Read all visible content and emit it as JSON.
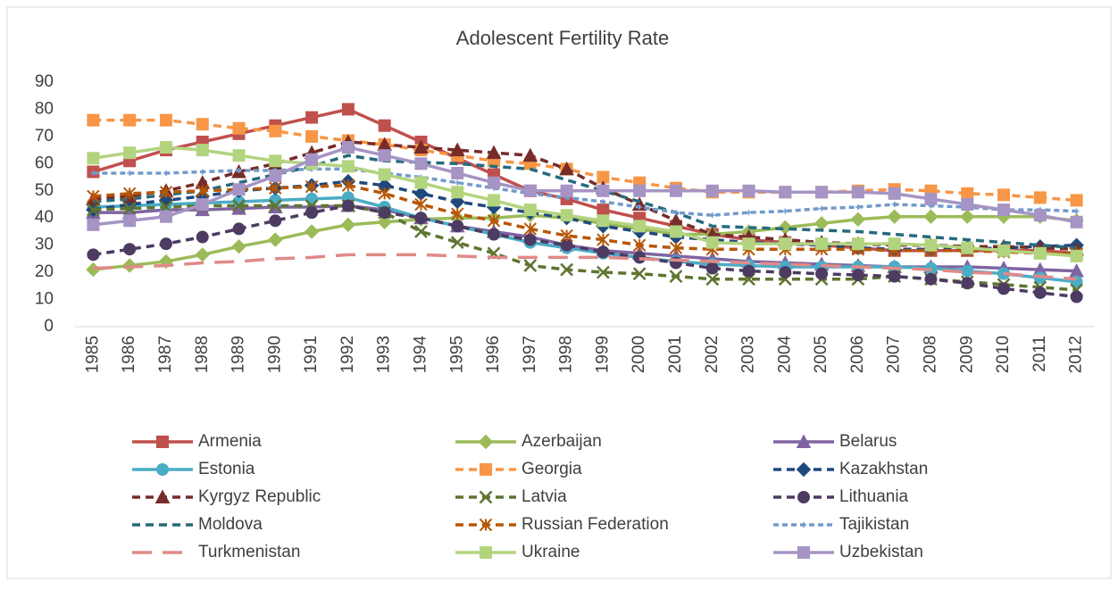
{
  "chart_data": {
    "type": "line",
    "title": "Adolescent Fertility Rate",
    "categories": [
      "1985",
      "1986",
      "1987",
      "1988",
      "1989",
      "1990",
      "1991",
      "1992",
      "1993",
      "1994",
      "1995",
      "1996",
      "1997",
      "1998",
      "1999",
      "2000",
      "2001",
      "2002",
      "2003",
      "2004",
      "2005",
      "2006",
      "2007",
      "2008",
      "2009",
      "2010",
      "2011",
      "2012"
    ],
    "ylim": [
      0,
      90
    ],
    "yticks": [
      0,
      10,
      20,
      30,
      40,
      50,
      60,
      70,
      80,
      90
    ],
    "grid": false,
    "legend": "bottom",
    "series": [
      {
        "name": "Armenia",
        "color": "#c0504d",
        "dash": "solid",
        "marker": "square",
        "values": [
          57,
          61,
          65,
          68,
          71,
          74,
          77,
          80,
          74,
          68,
          62,
          56,
          50,
          47,
          43,
          40,
          37,
          34,
          32,
          31,
          30,
          29,
          28,
          28,
          28,
          28,
          28,
          27
        ]
      },
      {
        "name": "Azerbaijan",
        "color": "#9bbb59",
        "dash": "solid",
        "marker": "diamond",
        "values": [
          21,
          22.5,
          24,
          26.5,
          29.5,
          32,
          35,
          37.5,
          38.5,
          39.5,
          40,
          40,
          41,
          40,
          38,
          36,
          34,
          34,
          35,
          36.5,
          38,
          39.5,
          40.5,
          40.5,
          40.5,
          40.5,
          40.5,
          39
        ]
      },
      {
        "name": "Belarus",
        "color": "#8064a2",
        "dash": "solid",
        "marker": "triangle",
        "values": [
          42,
          42,
          43,
          43,
          43.5,
          44,
          44,
          44.5,
          43,
          40,
          37,
          35,
          33,
          30,
          28,
          27,
          26,
          25,
          24,
          23.5,
          23,
          22.5,
          22,
          22,
          22,
          21.5,
          21,
          20.5
        ]
      },
      {
        "name": "Estonia",
        "color": "#4bacc6",
        "dash": "solid",
        "marker": "circle",
        "values": [
          44,
          44.5,
          45,
          45.5,
          46,
          46.5,
          47,
          47.5,
          44,
          40,
          37,
          34,
          31,
          29,
          27,
          25.5,
          24,
          23,
          22.5,
          22,
          22,
          22,
          22,
          21.5,
          20.5,
          19.5,
          18,
          16.5
        ]
      },
      {
        "name": "Georgia",
        "color": "#f79646",
        "dash": "dash",
        "marker": "square",
        "values": [
          76,
          76,
          76,
          74.5,
          73,
          72,
          70,
          68.5,
          67,
          65,
          63,
          61,
          60,
          58,
          55,
          53,
          51,
          49.5,
          49.5,
          49.5,
          49.5,
          50,
          50.5,
          50,
          49,
          48.5,
          47.5,
          46.5
        ]
      },
      {
        "name": "Kazakhstan",
        "color": "#1f497d",
        "dash": "dash",
        "marker": "diamond",
        "values": [
          43,
          45,
          46.5,
          48,
          50,
          51,
          52,
          53.5,
          52,
          49,
          46,
          44,
          42,
          40,
          37,
          35,
          33,
          32,
          31,
          30.5,
          30,
          29,
          28.5,
          28.5,
          28.5,
          29,
          29.5,
          30
        ]
      },
      {
        "name": "Kyrgyz Republic",
        "color": "#772c2a",
        "dash": "dash",
        "marker": "triangle",
        "values": [
          47,
          48,
          50,
          53,
          57,
          60,
          64,
          68,
          67,
          66,
          65,
          64,
          63,
          58,
          51,
          45,
          39,
          34,
          33,
          32,
          31,
          30.5,
          30,
          30,
          29.5,
          29.5,
          29,
          28.5
        ]
      },
      {
        "name": "Latvia",
        "color": "#5f7530",
        "dash": "dash",
        "marker": "x",
        "values": [
          43,
          43.5,
          44,
          44.5,
          44.5,
          44.5,
          44.5,
          44.5,
          42,
          35,
          31,
          27,
          22.5,
          21,
          20,
          19.5,
          18.5,
          17.5,
          17.5,
          17.5,
          17.5,
          17.5,
          18.5,
          17.5,
          16.5,
          15.5,
          14.5,
          13.5
        ]
      },
      {
        "name": "Lithuania",
        "color": "#4d3b62",
        "dash": "dash",
        "marker": "circle",
        "values": [
          26.5,
          28.5,
          30.5,
          33,
          36,
          39,
          42,
          44.5,
          42,
          40,
          37,
          34,
          32,
          30,
          27.5,
          25.5,
          23.5,
          21.5,
          20.5,
          20,
          19.5,
          19,
          18.5,
          17.5,
          16,
          14,
          12.5,
          11
        ]
      },
      {
        "name": "Moldova",
        "color": "#276a7c",
        "dash": "dash",
        "marker": "none",
        "values": [
          46,
          47,
          48.5,
          50,
          53,
          56,
          59,
          63,
          61,
          60.5,
          60,
          59,
          58,
          54,
          50,
          46,
          42,
          37,
          36.5,
          36,
          35.5,
          35,
          34,
          33,
          32,
          31,
          30,
          29
        ]
      },
      {
        "name": "Russian Federation",
        "color": "#b65708",
        "dash": "dash",
        "marker": "star",
        "values": [
          48,
          49,
          49.5,
          50,
          50.5,
          51,
          51.5,
          52,
          49,
          45,
          41.5,
          39,
          36,
          33.5,
          32,
          30,
          29,
          28.5,
          28.5,
          28.5,
          28.5,
          28.5,
          28,
          28,
          28,
          27.5,
          27,
          27
        ]
      },
      {
        "name": "Tajikistan",
        "color": "#729aca",
        "dash": "short-dash",
        "marker": "plus",
        "values": [
          56.5,
          56.5,
          56.5,
          57,
          57.5,
          57.5,
          58,
          58,
          56.5,
          55,
          53,
          51,
          49,
          47.5,
          46,
          44,
          42,
          41,
          42,
          42.5,
          43.5,
          44,
          45,
          44.5,
          44,
          43,
          43,
          42.5
        ]
      },
      {
        "name": "Turkmenistan",
        "color": "#e08a88",
        "dash": "long-dash",
        "marker": "none",
        "values": [
          21.5,
          22,
          22.5,
          23.5,
          24,
          25,
          25.5,
          26.5,
          26.5,
          26.5,
          26,
          25.5,
          25.5,
          25.5,
          25.5,
          25,
          24.5,
          24,
          23.5,
          23,
          22.5,
          22,
          21.5,
          21,
          20,
          19.5,
          18.5,
          17.5
        ]
      },
      {
        "name": "Ukraine",
        "color": "#b3d47f",
        "dash": "solid",
        "marker": "square",
        "values": [
          62,
          64,
          66,
          65,
          63,
          61,
          60,
          59,
          56,
          53,
          49.5,
          46.5,
          43,
          41,
          39,
          37,
          35,
          31,
          30.5,
          30.5,
          30.5,
          30.5,
          30.5,
          30,
          29,
          28,
          27,
          26
        ]
      },
      {
        "name": "Uzbekistan",
        "color": "#a594c4",
        "dash": "solid",
        "marker": "square",
        "values": [
          37.5,
          39,
          40.5,
          45,
          50.5,
          55.5,
          61.5,
          66,
          63,
          60,
          56.5,
          53,
          50,
          50,
          50,
          50,
          50,
          50,
          50,
          49.5,
          49.5,
          49.5,
          49,
          47,
          45,
          43,
          41,
          38.5
        ]
      }
    ]
  }
}
